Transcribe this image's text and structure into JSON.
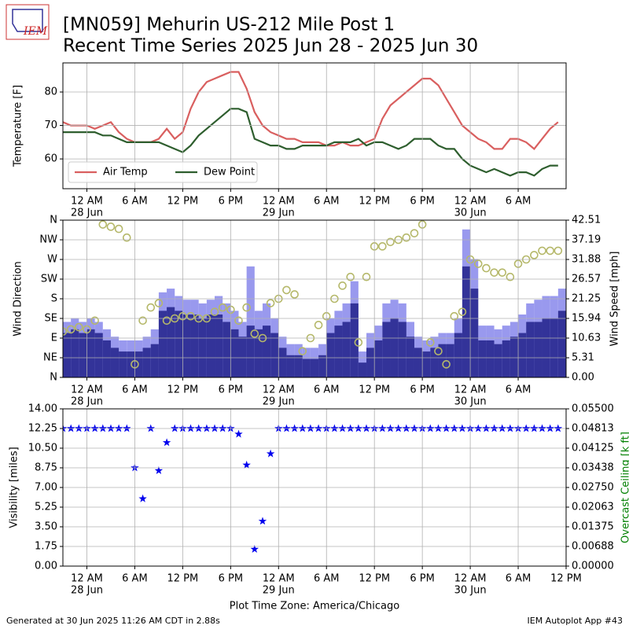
{
  "header": {
    "logo": "IEM",
    "title_line1": "[MN059] Mehurin US-212 Mile Post 1",
    "title_line2": "Recent Time Series 2025 Jun 28 - 2025 Jun 30"
  },
  "footer": {
    "left": "Generated at 30 Jun 2025 11:26 AM CDT in 2.88s",
    "right": "IEM Autoplot App #43"
  },
  "chart_data": [
    {
      "type": "line",
      "ylabel": "Temperature [F]",
      "grid": true,
      "legend": "lower left",
      "xlim": [
        "2025-06-27T21:00",
        "2025-06-30T12:00"
      ],
      "x": [
        "2025-06-27T21:00",
        "2025-06-27T22:00",
        "2025-06-27T23:00",
        "2025-06-28T00:00",
        "2025-06-28T01:00",
        "2025-06-28T02:00",
        "2025-06-28T03:00",
        "2025-06-28T04:00",
        "2025-06-28T05:00",
        "2025-06-28T06:00",
        "2025-06-28T07:00",
        "2025-06-28T08:00",
        "2025-06-28T09:00",
        "2025-06-28T10:00",
        "2025-06-28T11:00",
        "2025-06-28T12:00",
        "2025-06-28T13:00",
        "2025-06-28T14:00",
        "2025-06-28T15:00",
        "2025-06-28T16:00",
        "2025-06-28T17:00",
        "2025-06-28T18:00",
        "2025-06-28T19:00",
        "2025-06-28T20:00",
        "2025-06-28T21:00",
        "2025-06-28T22:00",
        "2025-06-28T23:00",
        "2025-06-29T00:00",
        "2025-06-29T01:00",
        "2025-06-29T02:00",
        "2025-06-29T03:00",
        "2025-06-29T04:00",
        "2025-06-29T05:00",
        "2025-06-29T06:00",
        "2025-06-29T07:00",
        "2025-06-29T08:00",
        "2025-06-29T09:00",
        "2025-06-29T10:00",
        "2025-06-29T11:00",
        "2025-06-29T12:00",
        "2025-06-29T13:00",
        "2025-06-29T14:00",
        "2025-06-29T15:00",
        "2025-06-29T16:00",
        "2025-06-29T17:00",
        "2025-06-29T18:00",
        "2025-06-29T19:00",
        "2025-06-29T20:00",
        "2025-06-29T21:00",
        "2025-06-29T22:00",
        "2025-06-29T23:00",
        "2025-06-30T00:00",
        "2025-06-30T01:00",
        "2025-06-30T02:00",
        "2025-06-30T03:00",
        "2025-06-30T04:00",
        "2025-06-30T05:00",
        "2025-06-30T06:00",
        "2025-06-30T07:00",
        "2025-06-30T08:00",
        "2025-06-30T09:00",
        "2025-06-30T10:00",
        "2025-06-30T11:00"
      ],
      "ylim": [
        51.1,
        88.7
      ],
      "yticks": [
        60,
        70,
        80
      ],
      "xticks": [
        {
          "value": "2025-06-28T00:00",
          "label": "12 AM"
        },
        {
          "value": "2025-06-28T06:00",
          "label": "6 AM"
        },
        {
          "value": "2025-06-28T12:00",
          "label": "12 PM"
        },
        {
          "value": "2025-06-28T18:00",
          "label": "6 PM"
        },
        {
          "value": "2025-06-29T00:00",
          "label": "12 AM"
        },
        {
          "value": "2025-06-29T06:00",
          "label": "6 AM"
        },
        {
          "value": "2025-06-29T12:00",
          "label": "12 PM"
        },
        {
          "value": "2025-06-29T18:00",
          "label": "6 PM"
        },
        {
          "value": "2025-06-30T00:00",
          "label": "12 AM"
        },
        {
          "value": "2025-06-30T06:00",
          "label": "6 AM"
        }
      ],
      "day_labels": [
        {
          "value": "2025-06-28T00:00",
          "label": "28 Jun"
        },
        {
          "value": "2025-06-29T00:00",
          "label": "29 Jun"
        },
        {
          "value": "2025-06-30T00:00",
          "label": "30 Jun"
        }
      ],
      "series": [
        {
          "name": "Air Temp",
          "type": "line",
          "color": "#d95f5f",
          "values": [
            71,
            70,
            70,
            70,
            69,
            70,
            71,
            68,
            66,
            65,
            65,
            65,
            66,
            69,
            66,
            68,
            75,
            80,
            83,
            84,
            85,
            86,
            86,
            81,
            74,
            70,
            68,
            67,
            66,
            66,
            65,
            65,
            65,
            64,
            64,
            65,
            64,
            64,
            65,
            66,
            72,
            76,
            78,
            80,
            82,
            84,
            84,
            82,
            78,
            74,
            70,
            68,
            66,
            65,
            63,
            63,
            66,
            66,
            65,
            63,
            66,
            69,
            71
          ]
        },
        {
          "name": "Dew Point",
          "type": "line",
          "color": "#2e5e2e",
          "values": [
            68,
            68,
            68,
            68,
            68,
            67,
            67,
            66,
            65,
            65,
            65,
            65,
            65,
            64,
            63,
            62,
            64,
            67,
            69,
            71,
            73,
            75,
            75,
            74,
            66,
            65,
            64,
            64,
            63,
            63,
            64,
            64,
            64,
            64,
            65,
            65,
            65,
            66,
            64,
            65,
            65,
            64,
            63,
            64,
            66,
            66,
            66,
            64,
            63,
            63,
            60,
            58,
            57,
            56,
            57,
            56,
            55,
            56,
            56,
            55,
            57,
            58,
            58
          ]
        }
      ]
    },
    {
      "type": "bar",
      "ylabel": "Wind Direction",
      "y2label": "Wind Speed [mph]",
      "grid": true,
      "xlim": [
        "2025-06-27T21:00",
        "2025-06-30T12:00"
      ],
      "x": [
        "2025-06-27T21:00",
        "2025-06-27T22:00",
        "2025-06-27T23:00",
        "2025-06-28T00:00",
        "2025-06-28T01:00",
        "2025-06-28T02:00",
        "2025-06-28T03:00",
        "2025-06-28T04:00",
        "2025-06-28T05:00",
        "2025-06-28T06:00",
        "2025-06-28T07:00",
        "2025-06-28T08:00",
        "2025-06-28T09:00",
        "2025-06-28T10:00",
        "2025-06-28T11:00",
        "2025-06-28T12:00",
        "2025-06-28T13:00",
        "2025-06-28T14:00",
        "2025-06-28T15:00",
        "2025-06-28T16:00",
        "2025-06-28T17:00",
        "2025-06-28T18:00",
        "2025-06-28T19:00",
        "2025-06-28T20:00",
        "2025-06-28T21:00",
        "2025-06-28T22:00",
        "2025-06-28T23:00",
        "2025-06-29T00:00",
        "2025-06-29T01:00",
        "2025-06-29T02:00",
        "2025-06-29T03:00",
        "2025-06-29T04:00",
        "2025-06-29T05:00",
        "2025-06-29T06:00",
        "2025-06-29T07:00",
        "2025-06-29T08:00",
        "2025-06-29T09:00",
        "2025-06-29T10:00",
        "2025-06-29T11:00",
        "2025-06-29T12:00",
        "2025-06-29T13:00",
        "2025-06-29T14:00",
        "2025-06-29T15:00",
        "2025-06-29T16:00",
        "2025-06-29T17:00",
        "2025-06-29T18:00",
        "2025-06-29T19:00",
        "2025-06-29T20:00",
        "2025-06-29T21:00",
        "2025-06-29T22:00",
        "2025-06-29T23:00",
        "2025-06-30T00:00",
        "2025-06-30T01:00",
        "2025-06-30T02:00",
        "2025-06-30T03:00",
        "2025-06-30T04:00",
        "2025-06-30T05:00",
        "2025-06-30T06:00",
        "2025-06-30T07:00",
        "2025-06-30T08:00",
        "2025-06-30T09:00",
        "2025-06-30T10:00",
        "2025-06-30T11:00"
      ],
      "ylim": [
        0,
        360
      ],
      "yticks": [
        {
          "value": 0,
          "label": "N"
        },
        {
          "value": 45,
          "label": "NE"
        },
        {
          "value": 90,
          "label": "E"
        },
        {
          "value": 135,
          "label": "SE"
        },
        {
          "value": 180,
          "label": "S"
        },
        {
          "value": 225,
          "label": "SW"
        },
        {
          "value": 270,
          "label": "W"
        },
        {
          "value": 315,
          "label": "NW"
        },
        {
          "value": 360,
          "label": "N"
        }
      ],
      "y2lim": [
        0,
        42.51
      ],
      "y2ticks": [
        {
          "value": 0,
          "label": "0.00"
        },
        5.31,
        10.63,
        15.94,
        21.25,
        26.57,
        31.88,
        37.19,
        42.51
      ],
      "xticks": [
        {
          "value": "2025-06-28T00:00",
          "label": "12 AM"
        },
        {
          "value": "2025-06-28T06:00",
          "label": "6 AM"
        },
        {
          "value": "2025-06-28T12:00",
          "label": "12 PM"
        },
        {
          "value": "2025-06-28T18:00",
          "label": "6 PM"
        },
        {
          "value": "2025-06-29T00:00",
          "label": "12 AM"
        },
        {
          "value": "2025-06-29T06:00",
          "label": "6 AM"
        },
        {
          "value": "2025-06-29T12:00",
          "label": "12 PM"
        },
        {
          "value": "2025-06-29T18:00",
          "label": "6 PM"
        },
        {
          "value": "2025-06-30T00:00",
          "label": "12 AM"
        },
        {
          "value": "2025-06-30T06:00",
          "label": "6 AM"
        }
      ],
      "day_labels": [
        {
          "value": "2025-06-28T00:00",
          "label": "28 Jun"
        },
        {
          "value": "2025-06-29T00:00",
          "label": "29 Jun"
        },
        {
          "value": "2025-06-30T00:00",
          "label": "30 Jun"
        }
      ],
      "series": [
        {
          "type": "bar",
          "axis": "y2",
          "color": "#9999ee",
          "values": [
            15,
            16,
            15,
            16,
            15,
            13,
            11,
            10,
            10,
            10,
            11,
            13,
            23,
            24,
            22,
            21,
            21,
            20,
            21,
            22,
            20,
            18,
            15,
            30,
            18,
            20,
            16,
            11,
            9,
            9,
            8,
            8,
            9,
            16,
            18,
            20,
            26,
            7,
            12,
            14,
            20,
            21,
            20,
            15,
            11,
            10,
            11,
            12,
            12,
            16,
            40,
            32,
            14,
            14,
            13,
            14,
            15,
            17,
            20,
            21,
            22,
            22,
            24
          ]
        },
        {
          "type": "bar",
          "axis": "y2",
          "color": "#333399",
          "values": [
            12,
            13,
            12,
            13,
            12,
            10,
            8,
            7,
            7,
            7,
            8,
            9,
            18,
            19,
            18,
            17,
            17,
            16,
            17,
            17,
            15,
            13,
            11,
            14,
            13,
            14,
            12,
            8,
            6,
            6,
            5,
            5,
            6,
            12,
            14,
            15,
            20,
            4,
            8,
            10,
            15,
            16,
            15,
            11,
            8,
            7,
            8,
            9,
            9,
            12,
            30,
            24,
            10,
            10,
            9,
            10,
            11,
            12,
            15,
            15,
            16,
            16,
            18
          ]
        },
        {
          "type": "scatter",
          "color": "#b5b86a",
          "values": [
            105,
            110,
            115,
            110,
            130,
            350,
            345,
            340,
            320,
            30,
            130,
            160,
            170,
            130,
            135,
            140,
            140,
            135,
            135,
            150,
            160,
            155,
            130,
            160,
            100,
            90,
            170,
            180,
            200,
            190,
            60,
            90,
            120,
            140,
            180,
            210,
            230,
            80,
            230,
            300,
            300,
            310,
            315,
            320,
            330,
            350,
            80,
            60,
            30,
            140,
            150,
            270,
            260,
            250,
            240,
            240,
            230,
            260,
            270,
            280,
            290,
            290,
            290
          ]
        }
      ]
    },
    {
      "type": "scatter",
      "ylabel": "Visibility [miles]",
      "y2label": "Overcast Ceiling [k ft]",
      "y2color": "#008000",
      "xlabel": "Plot Time Zone: America/Chicago",
      "grid": true,
      "marker": "star",
      "xlim": [
        "2025-06-27T21:00",
        "2025-06-30T12:00"
      ],
      "x": [
        "2025-06-27T21:00",
        "2025-06-27T22:00",
        "2025-06-27T23:00",
        "2025-06-28T00:00",
        "2025-06-28T01:00",
        "2025-06-28T02:00",
        "2025-06-28T03:00",
        "2025-06-28T04:00",
        "2025-06-28T05:00",
        "2025-06-28T06:00",
        "2025-06-28T07:00",
        "2025-06-28T08:00",
        "2025-06-28T09:00",
        "2025-06-28T10:00",
        "2025-06-28T11:00",
        "2025-06-28T12:00",
        "2025-06-28T13:00",
        "2025-06-28T14:00",
        "2025-06-28T15:00",
        "2025-06-28T16:00",
        "2025-06-28T17:00",
        "2025-06-28T18:00",
        "2025-06-28T19:00",
        "2025-06-28T20:00",
        "2025-06-28T21:00",
        "2025-06-28T22:00",
        "2025-06-28T23:00",
        "2025-06-29T00:00",
        "2025-06-29T01:00",
        "2025-06-29T02:00",
        "2025-06-29T03:00",
        "2025-06-29T04:00",
        "2025-06-29T05:00",
        "2025-06-29T06:00",
        "2025-06-29T07:00",
        "2025-06-29T08:00",
        "2025-06-29T09:00",
        "2025-06-29T10:00",
        "2025-06-29T11:00",
        "2025-06-29T12:00",
        "2025-06-29T13:00",
        "2025-06-29T14:00",
        "2025-06-29T15:00",
        "2025-06-29T16:00",
        "2025-06-29T17:00",
        "2025-06-29T18:00",
        "2025-06-29T19:00",
        "2025-06-29T20:00",
        "2025-06-29T21:00",
        "2025-06-29T22:00",
        "2025-06-29T23:00",
        "2025-06-30T00:00",
        "2025-06-30T01:00",
        "2025-06-30T02:00",
        "2025-06-30T03:00",
        "2025-06-30T04:00",
        "2025-06-30T05:00",
        "2025-06-30T06:00",
        "2025-06-30T07:00",
        "2025-06-30T08:00",
        "2025-06-30T09:00",
        "2025-06-30T10:00",
        "2025-06-30T11:00"
      ],
      "ylim": [
        0,
        14
      ],
      "yticks": [
        {
          "value": 0,
          "label": "0.00"
        },
        1.75,
        {
          "value": 3.5,
          "label": "3.50"
        },
        5.25,
        {
          "value": 7,
          "label": "7.00"
        },
        8.75,
        {
          "value": 10.5,
          "label": "10.50"
        },
        12.25,
        {
          "value": 14,
          "label": "14.00"
        }
      ],
      "y2lim": [
        0,
        0.055
      ],
      "y2ticks": [
        {
          "value": 0,
          "label": "0.00000"
        },
        {
          "value": 0.006875,
          "label": "0.00688"
        },
        {
          "value": 0.01375,
          "label": "0.01375"
        },
        {
          "value": 0.020625,
          "label": "0.02063"
        },
        {
          "value": 0.0275,
          "label": "0.02750"
        },
        {
          "value": 0.034375,
          "label": "0.03438"
        },
        {
          "value": 0.04125,
          "label": "0.04125"
        },
        {
          "value": 0.048125,
          "label": "0.04813"
        },
        {
          "value": 0.055,
          "label": "0.05500"
        }
      ],
      "xticks": [
        {
          "value": "2025-06-28T00:00",
          "label": "12 AM"
        },
        {
          "value": "2025-06-28T06:00",
          "label": "6 AM"
        },
        {
          "value": "2025-06-28T12:00",
          "label": "12 PM"
        },
        {
          "value": "2025-06-28T18:00",
          "label": "6 PM"
        },
        {
          "value": "2025-06-29T00:00",
          "label": "12 AM"
        },
        {
          "value": "2025-06-29T06:00",
          "label": "6 AM"
        },
        {
          "value": "2025-06-29T12:00",
          "label": "12 PM"
        },
        {
          "value": "2025-06-29T18:00",
          "label": "6 PM"
        },
        {
          "value": "2025-06-30T00:00",
          "label": "12 AM"
        },
        {
          "value": "2025-06-30T06:00",
          "label": "6 AM"
        },
        {
          "value": "2025-06-30T12:00",
          "label": "12 PM"
        }
      ],
      "day_labels": [
        {
          "value": "2025-06-28T00:00",
          "label": "28 Jun"
        },
        {
          "value": "2025-06-29T00:00",
          "label": "29 Jun"
        },
        {
          "value": "2025-06-30T00:00",
          "label": "30 Jun"
        }
      ],
      "series": [
        {
          "type": "scatter",
          "color": "#0000ee",
          "values": [
            12.25,
            12.25,
            12.25,
            12.25,
            12.25,
            12.25,
            12.25,
            12.25,
            12.25,
            8.75,
            6.0,
            12.25,
            8.5,
            11.0,
            12.25,
            12.25,
            12.25,
            12.25,
            12.25,
            12.25,
            12.25,
            12.25,
            11.75,
            9.0,
            1.5,
            4.0,
            10.0,
            12.25,
            12.25,
            12.25,
            12.25,
            12.25,
            12.25,
            12.25,
            12.25,
            12.25,
            12.25,
            12.25,
            12.25,
            12.25,
            12.25,
            12.25,
            12.25,
            12.25,
            12.25,
            12.25,
            12.25,
            12.25,
            12.25,
            12.25,
            12.25,
            12.25,
            12.25,
            12.25,
            12.25,
            12.25,
            12.25,
            12.25,
            12.25,
            12.25,
            12.25,
            12.25,
            12.25
          ]
        }
      ]
    }
  ]
}
